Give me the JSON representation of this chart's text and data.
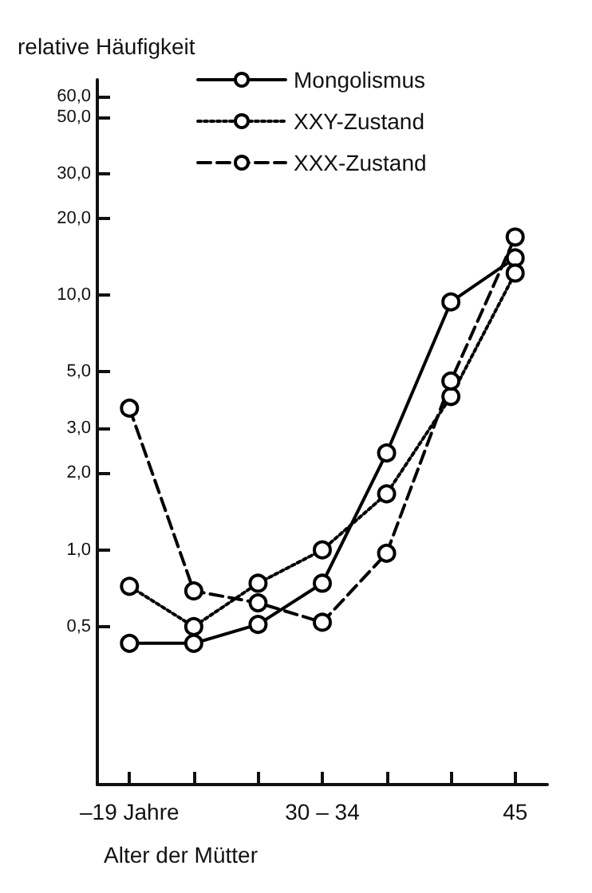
{
  "chart_data": {
    "type": "line",
    "xlabel": "Alter der Mütter",
    "ylabel": "relative Häufigkeit",
    "categories": [
      "–19 Jahre",
      null,
      null,
      "30 – 34",
      null,
      null,
      "45"
    ],
    "series": [
      {
        "name": "Mongolismus",
        "color": "#000000",
        "line_style": "solid",
        "values": [
          0.43,
          0.43,
          0.51,
          0.74,
          2.4,
          9.4,
          14
        ]
      },
      {
        "name": "XXY-Zustand",
        "color": "#000000",
        "line_style": "dotted",
        "values": [
          0.72,
          0.5,
          0.74,
          1.0,
          1.66,
          4.0,
          12.2
        ]
      },
      {
        "name": "XXX-Zustand",
        "color": "#000000",
        "line_style": "dashed",
        "values": [
          3.6,
          0.69,
          0.62,
          0.52,
          0.97,
          4.6,
          16.9
        ]
      }
    ],
    "log": "y",
    "ylim": [
      0.12,
      70
    ],
    "yticks": [
      {
        "value": 0.5,
        "label": "0,5"
      },
      {
        "value": 1,
        "label": "1,0"
      },
      {
        "value": 2,
        "label": "2,0"
      },
      {
        "value": 3,
        "label": "3,0"
      },
      {
        "value": 5,
        "label": "5,0"
      },
      {
        "value": 10,
        "label": "10,0"
      },
      {
        "value": 20,
        "label": "20,0"
      },
      {
        "value": 30,
        "label": "30,0"
      },
      {
        "value": 50,
        "label": "50,0"
      },
      {
        "value": 60,
        "label": "60,0"
      }
    ],
    "grid": false,
    "legend": "top",
    "marker": "circle"
  }
}
